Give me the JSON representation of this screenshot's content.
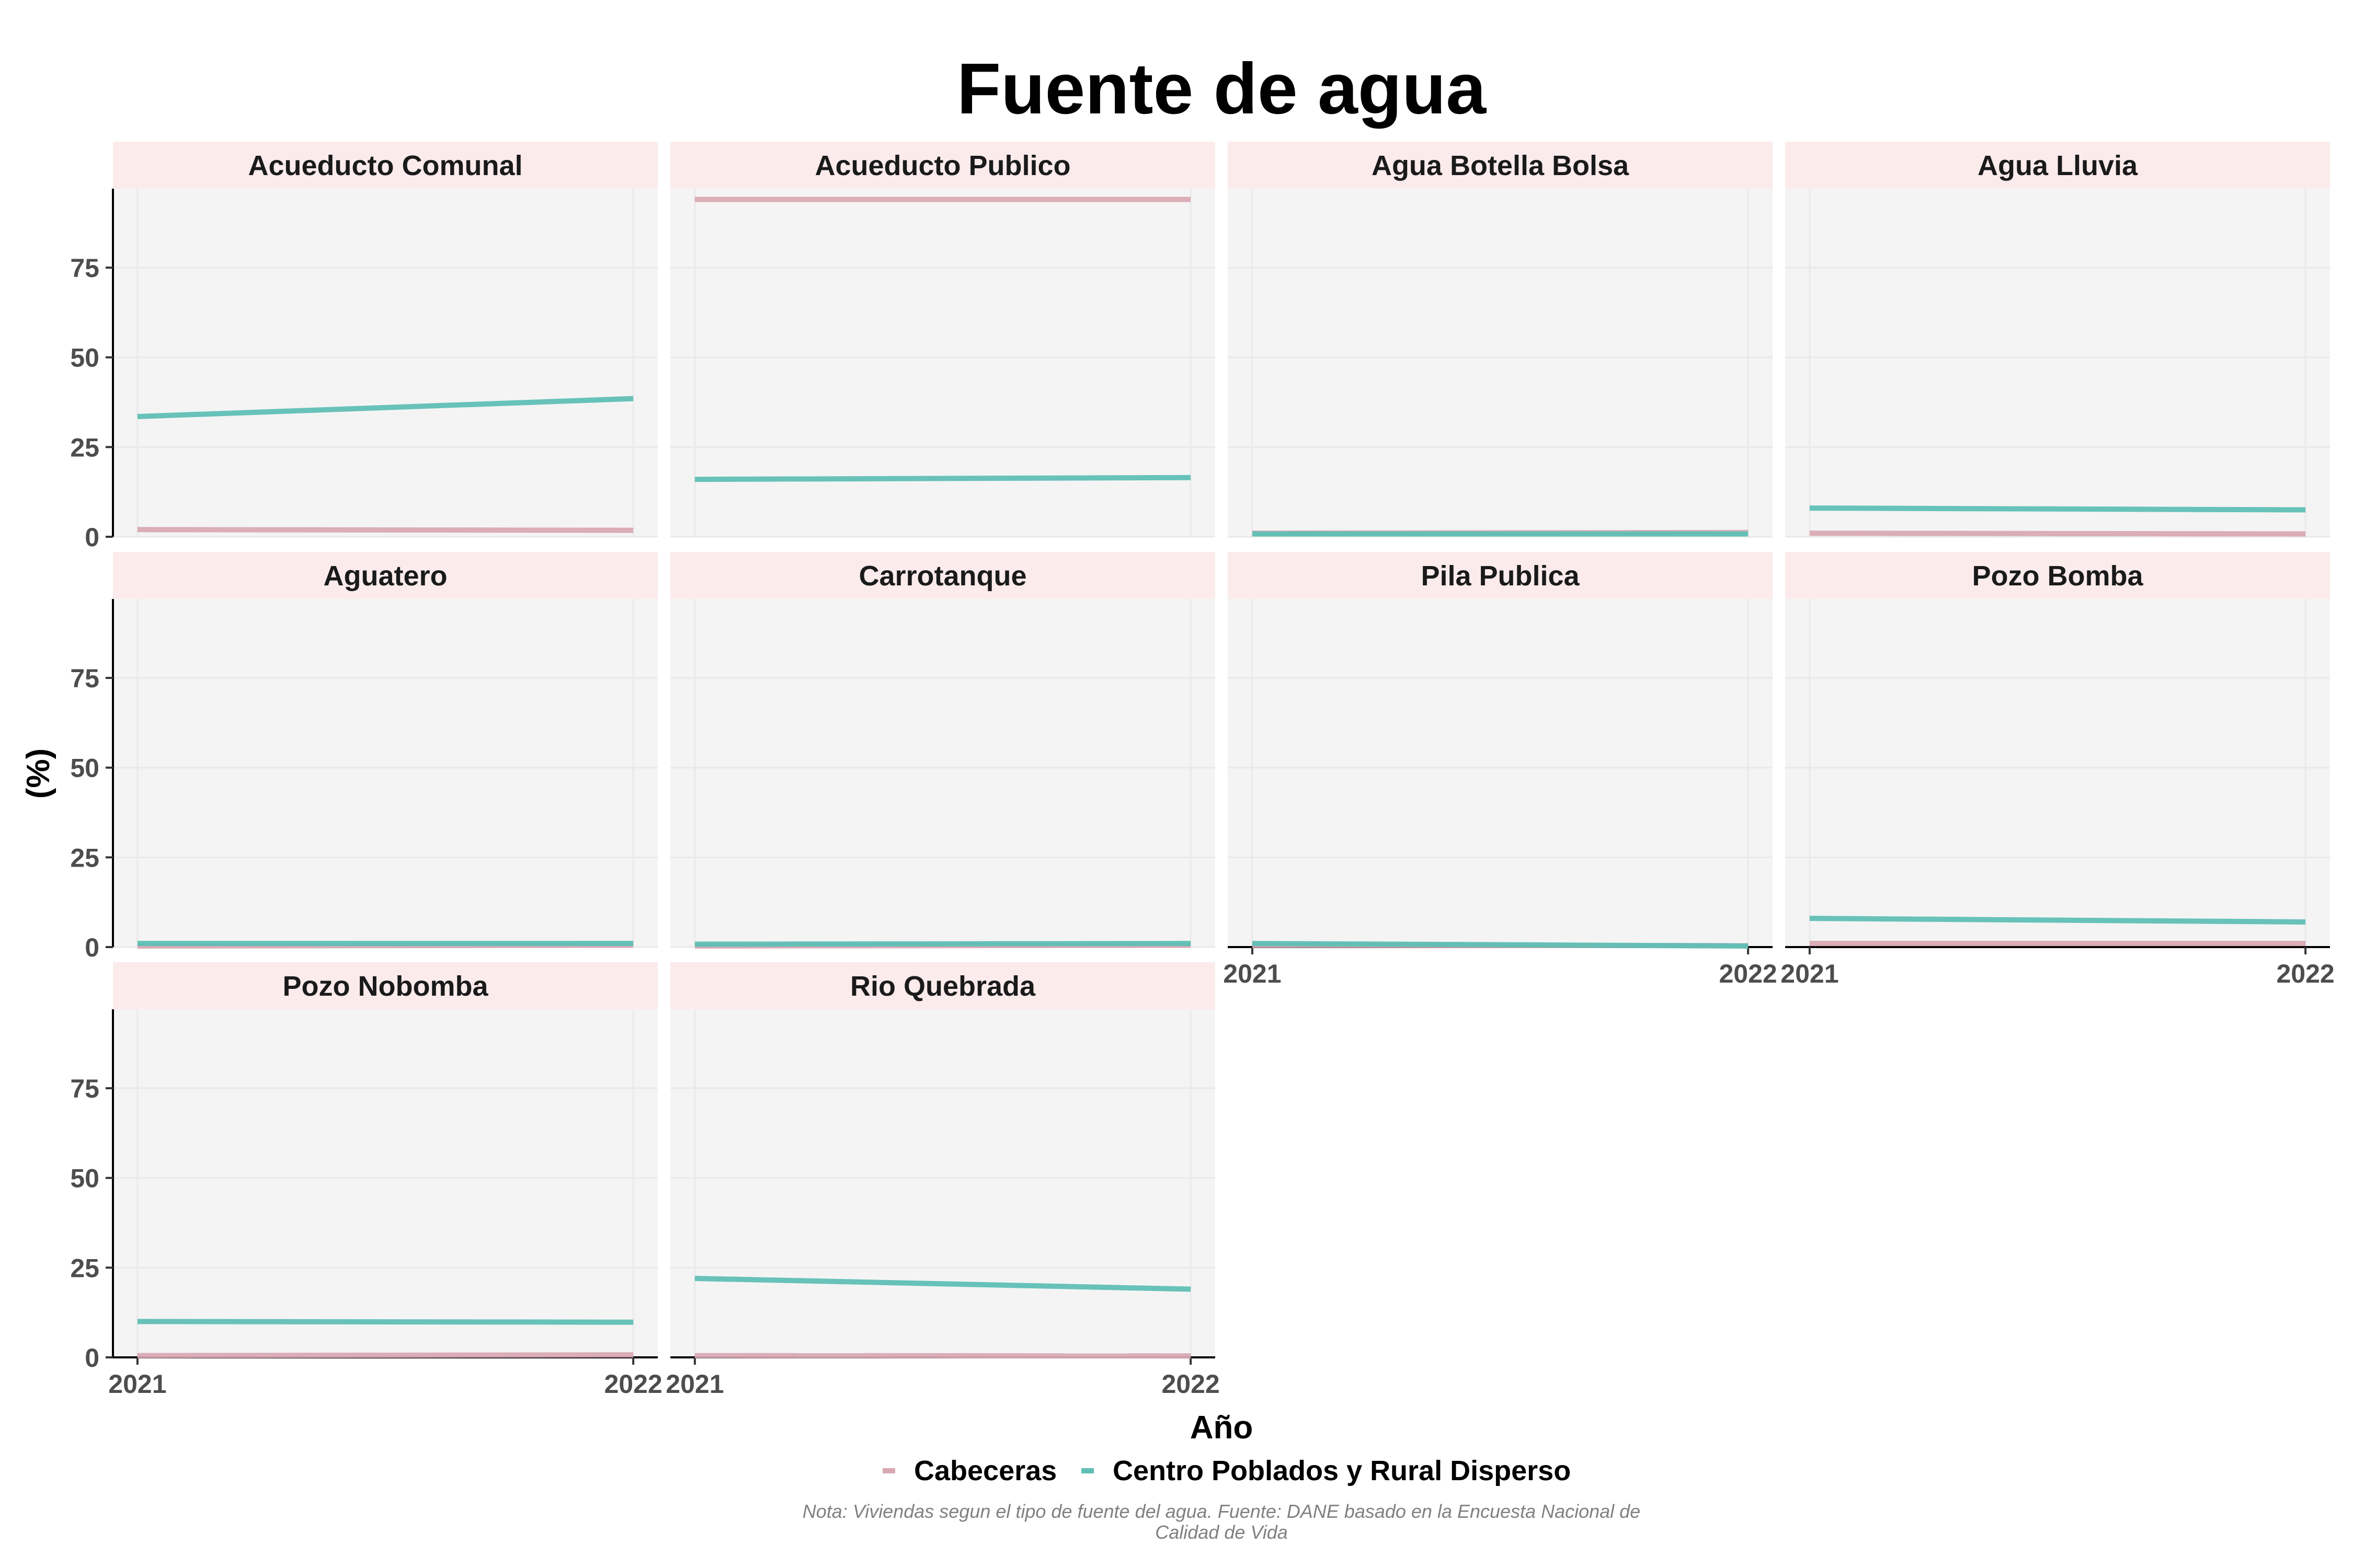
{
  "chart_data": {
    "type": "line",
    "title": "Fuente de agua",
    "xlabel": "Año",
    "ylabel": "(%)",
    "x": [
      2021,
      2022
    ],
    "x_tick_labels": [
      "2021",
      "2022"
    ],
    "ylim": [
      0,
      97
    ],
    "y_ticks": [
      0,
      25,
      50,
      75
    ],
    "layout": "facet-wrap 4 columns",
    "grid": true,
    "legend_position": "bottom",
    "series_names": [
      "Cabeceras",
      "Centro Poblados y Rural Disperso"
    ],
    "colors": {
      "Cabeceras": "#d8a9b3",
      "Centro Poblados y Rural Disperso": "#5fbfb5",
      "panel_background": "#f4f4f4",
      "strip_background": "#fbebeb",
      "grid": "#e9e9e9"
    },
    "panels": [
      {
        "name": "Acueducto Comunal",
        "series": [
          {
            "name": "Cabeceras",
            "values": [
              2.0,
              1.8
            ]
          },
          {
            "name": "Centro Poblados y Rural Disperso",
            "values": [
              33.5,
              38.5
            ]
          }
        ]
      },
      {
        "name": "Acueducto Publico",
        "series": [
          {
            "name": "Cabeceras",
            "values": [
              94.0,
              94.0
            ]
          },
          {
            "name": "Centro Poblados y Rural Disperso",
            "values": [
              16.0,
              16.5
            ]
          }
        ]
      },
      {
        "name": "Agua Botella Bolsa",
        "series": [
          {
            "name": "Cabeceras",
            "values": [
              1.0,
              1.2
            ]
          },
          {
            "name": "Centro Poblados y Rural Disperso",
            "values": [
              0.8,
              0.8
            ]
          }
        ]
      },
      {
        "name": "Agua Lluvia",
        "series": [
          {
            "name": "Cabeceras",
            "values": [
              1.0,
              0.8
            ]
          },
          {
            "name": "Centro Poblados y Rural Disperso",
            "values": [
              8.0,
              7.5
            ]
          }
        ]
      },
      {
        "name": "Aguatero",
        "series": [
          {
            "name": "Cabeceras",
            "values": [
              0.3,
              0.5
            ]
          },
          {
            "name": "Centro Poblados y Rural Disperso",
            "values": [
              1.0,
              1.0
            ]
          }
        ]
      },
      {
        "name": "Carrotanque",
        "series": [
          {
            "name": "Cabeceras",
            "values": [
              0.3,
              0.5
            ]
          },
          {
            "name": "Centro Poblados y Rural Disperso",
            "values": [
              0.8,
              1.0
            ]
          }
        ]
      },
      {
        "name": "Pila Publica",
        "series": [
          {
            "name": "Cabeceras",
            "values": [
              0.5,
              0.4
            ]
          },
          {
            "name": "Centro Poblados y Rural Disperso",
            "values": [
              1.0,
              0.3
            ]
          }
        ]
      },
      {
        "name": "Pozo Bomba",
        "series": [
          {
            "name": "Cabeceras",
            "values": [
              1.0,
              1.0
            ]
          },
          {
            "name": "Centro Poblados y Rural Disperso",
            "values": [
              8.0,
              7.0
            ]
          }
        ]
      },
      {
        "name": "Pozo Nobomba",
        "series": [
          {
            "name": "Cabeceras",
            "values": [
              0.5,
              0.7
            ]
          },
          {
            "name": "Centro Poblados y Rural Disperso",
            "values": [
              10.0,
              9.8
            ]
          }
        ]
      },
      {
        "name": "Rio Quebrada",
        "series": [
          {
            "name": "Cabeceras",
            "values": [
              0.5,
              0.4
            ]
          },
          {
            "name": "Centro Poblados y Rural Disperso",
            "values": [
              22.0,
              19.0
            ]
          }
        ]
      }
    ],
    "annotations": {
      "note_lines": [
        "Nota: Viviendas segun el tipo de fuente del agua. Fuente: DANE basado en la Encuesta Nacional de",
        "Calidad de Vida"
      ]
    }
  }
}
